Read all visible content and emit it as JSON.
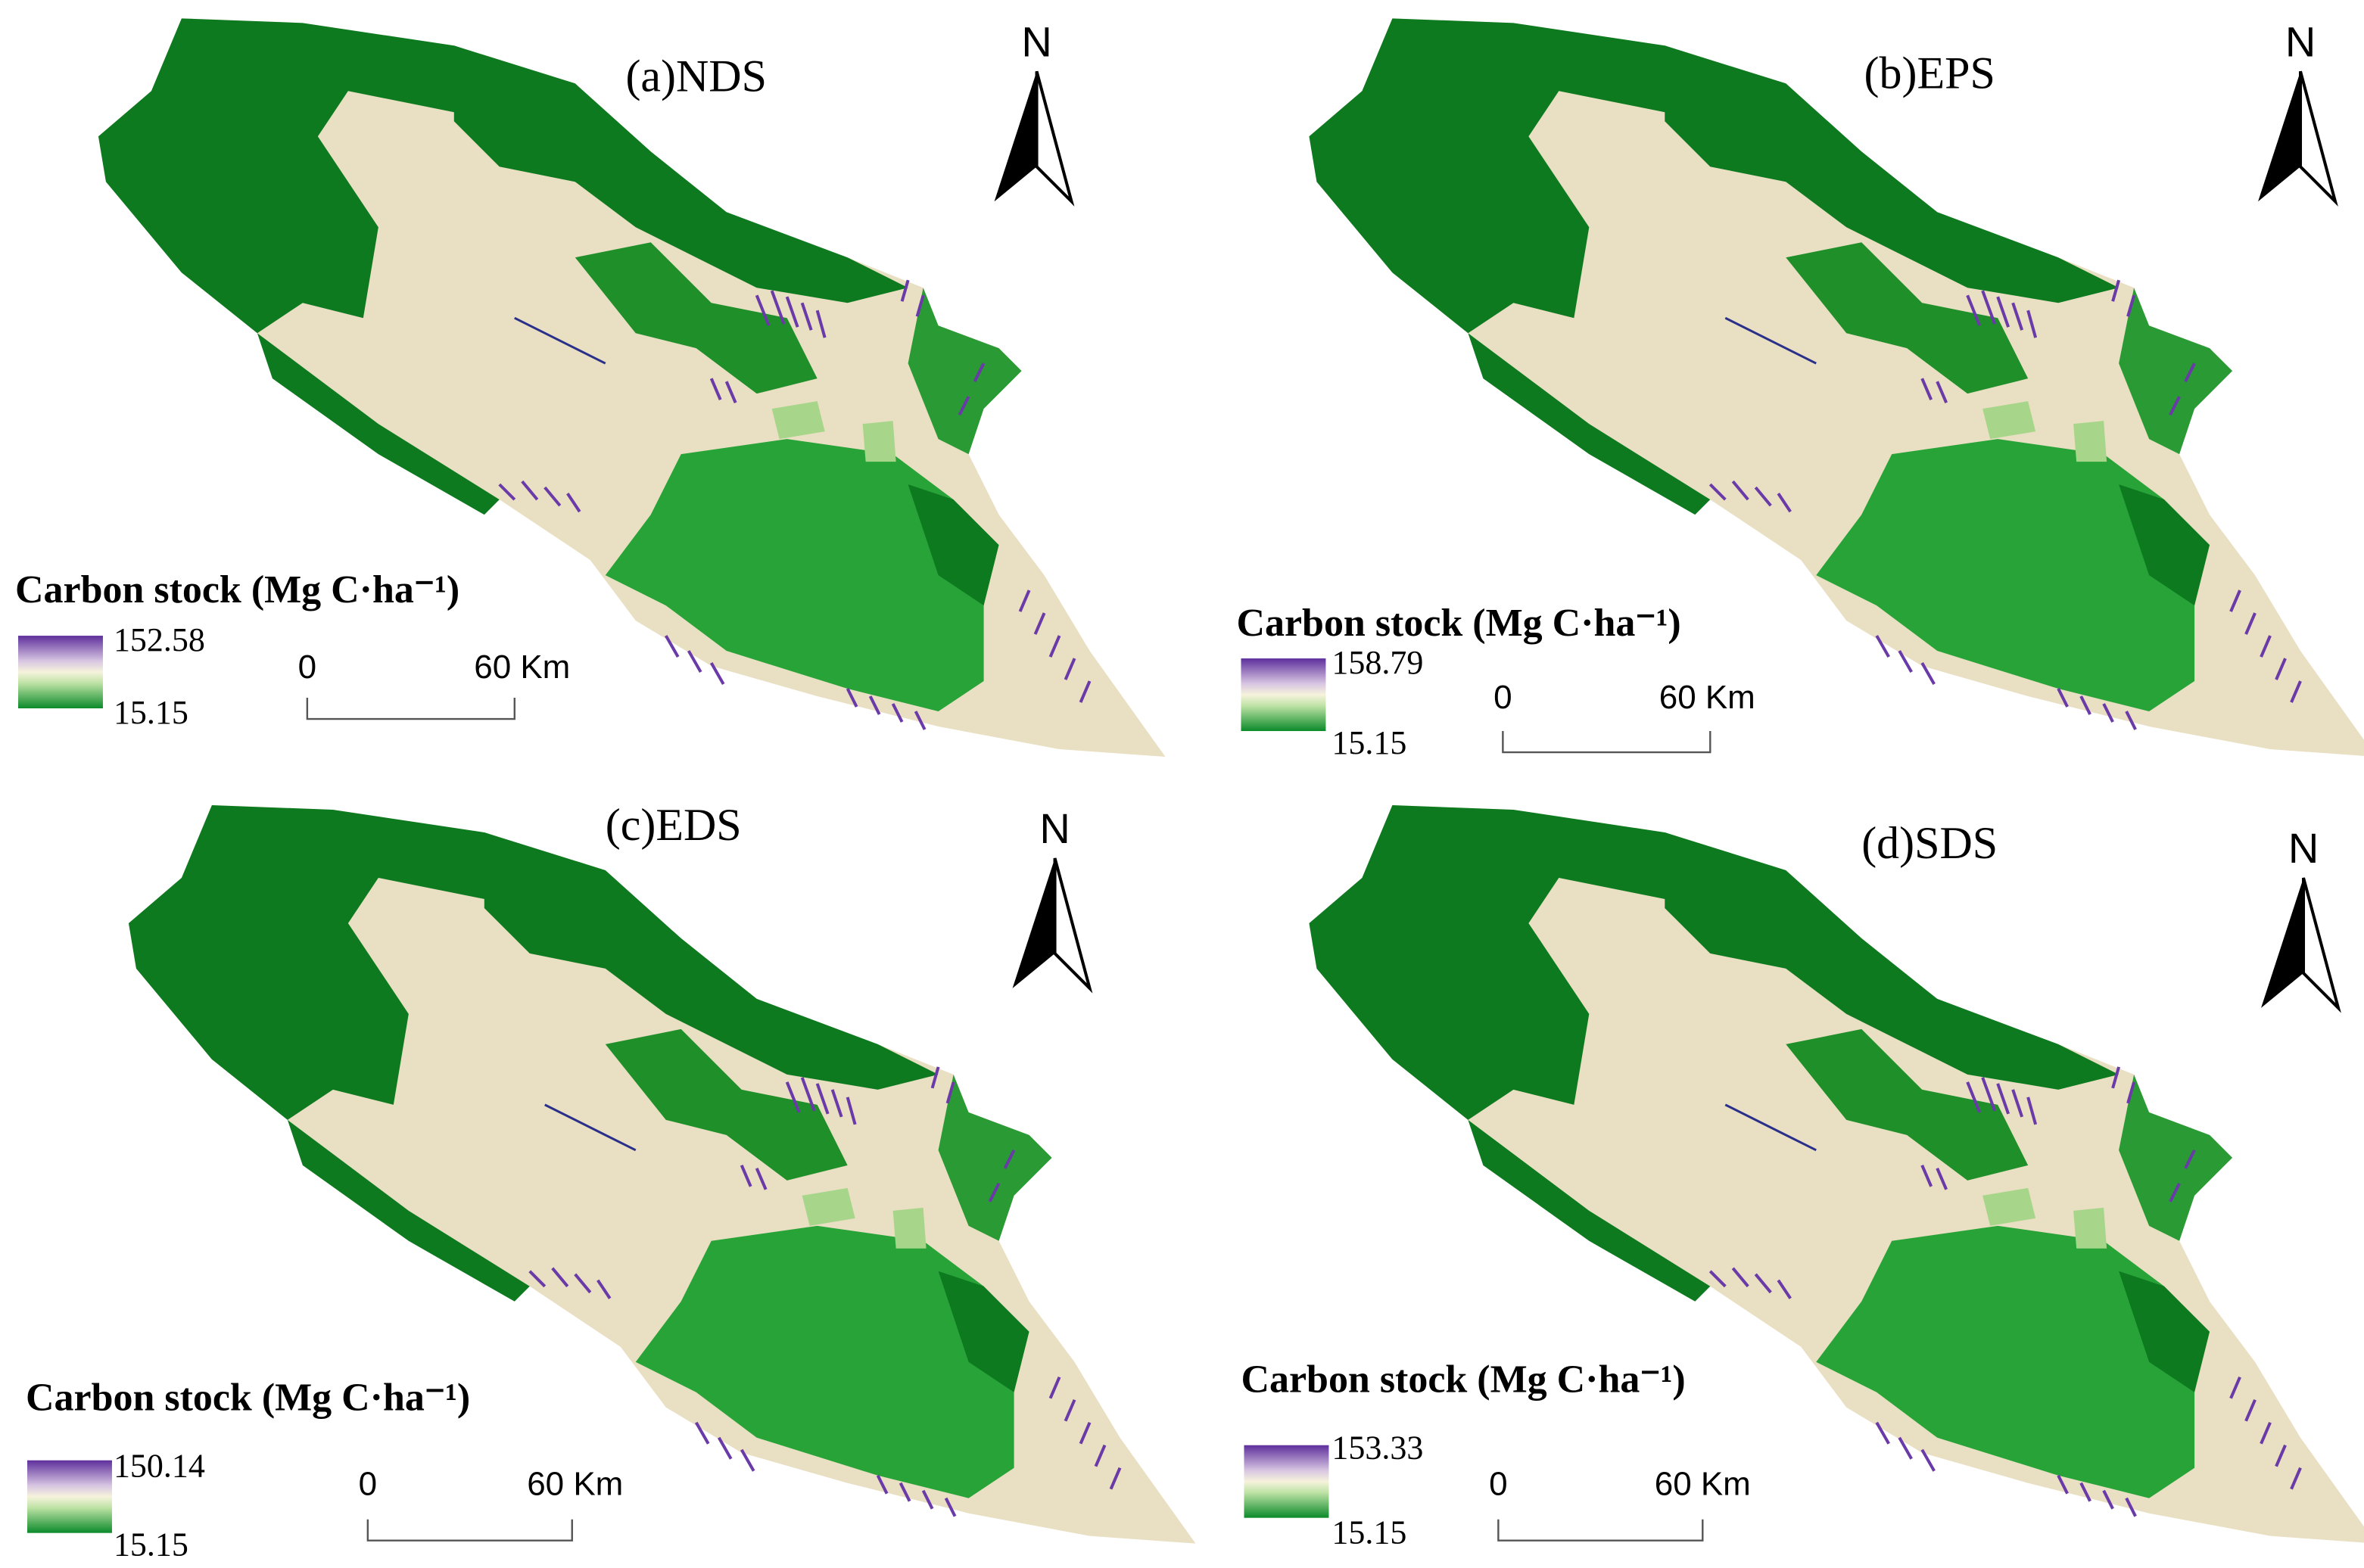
{
  "panels": [
    {
      "title": "(a)NDS",
      "north": "N",
      "legend_title": "Carbon  stock (Mg C·ha⁻¹)",
      "legend_max": "152.58",
      "legend_min": "15.15",
      "scale_start": "0",
      "scale_end": "60 Km"
    },
    {
      "title": "(b)EPS",
      "north": "N",
      "legend_title": "Carbon  stock (Mg C·ha⁻¹)",
      "legend_max": "158.79",
      "legend_min": "15.15",
      "scale_start": "0",
      "scale_end": "60 Km"
    },
    {
      "title": "(c)EDS",
      "north": "N",
      "legend_title": "Carbon  stock (Mg C·ha⁻¹)",
      "legend_max": "150.14",
      "legend_min": "15.15",
      "scale_start": "0",
      "scale_end": "60 Km"
    },
    {
      "title": "(d)SDS",
      "north": "N",
      "legend_title": "Carbon  stock (Mg C·ha⁻¹)",
      "legend_max": "153.33",
      "legend_min": "15.15",
      "scale_start": "0",
      "scale_end": "60 Km"
    }
  ]
}
